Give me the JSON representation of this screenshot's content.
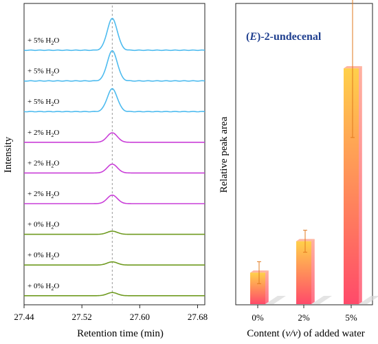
{
  "chart_data": [
    {
      "type": "line",
      "xlabel": "Retention time (min)",
      "ylabel": "Intensity",
      "xlim": [
        27.44,
        27.69
      ],
      "xticks": [
        "27.44",
        "27.52",
        "27.60",
        "27.68"
      ],
      "xtick_values": [
        27.44,
        27.52,
        27.6,
        27.68
      ],
      "reference_line_x": 27.562,
      "peak_center": 27.562,
      "peak_width": 0.007,
      "series": [
        {
          "label_prefix": "+ 5% H",
          "label_sub": "2",
          "label_suffix": "O",
          "color": "#4dbbef",
          "peak_height": 1.0
        },
        {
          "label_prefix": "+ 5% H",
          "label_sub": "2",
          "label_suffix": "O",
          "color": "#4dbbef",
          "peak_height": 0.95
        },
        {
          "label_prefix": "+ 5% H",
          "label_sub": "2",
          "label_suffix": "O",
          "color": "#4dbbef",
          "peak_height": 0.72
        },
        {
          "label_prefix": "+ 2% H",
          "label_sub": "2",
          "label_suffix": "O",
          "color": "#c93ed8",
          "peak_height": 0.3
        },
        {
          "label_prefix": "+ 2% H",
          "label_sub": "2",
          "label_suffix": "O",
          "color": "#c93ed8",
          "peak_height": 0.28
        },
        {
          "label_prefix": "+ 2% H",
          "label_sub": "2",
          "label_suffix": "O",
          "color": "#c93ed8",
          "peak_height": 0.27
        },
        {
          "label_prefix": "+ 0% H",
          "label_sub": "2",
          "label_suffix": "O",
          "color": "#6e9a1f",
          "peak_height": 0.1
        },
        {
          "label_prefix": "+ 0% H",
          "label_sub": "2",
          "label_suffix": "O",
          "color": "#6e9a1f",
          "peak_height": 0.1
        },
        {
          "label_prefix": "+ 0% H",
          "label_sub": "2",
          "label_suffix": "O",
          "color": "#6e9a1f",
          "peak_height": 0.1
        }
      ]
    },
    {
      "type": "bar",
      "title": "(E)-2-undecenal",
      "title_italic": "E",
      "ylabel": "Relative peak area",
      "xlabel_parts": [
        "Content (",
        "v/v",
        ") of added water"
      ],
      "categories": [
        "0%",
        "2%",
        "5%"
      ],
      "values": [
        1.0,
        2.0,
        7.5
      ],
      "errors": [
        0.35,
        0.35,
        2.2
      ],
      "ylim": [
        0,
        9.5
      ],
      "title_color": "#1f3f8f"
    }
  ]
}
